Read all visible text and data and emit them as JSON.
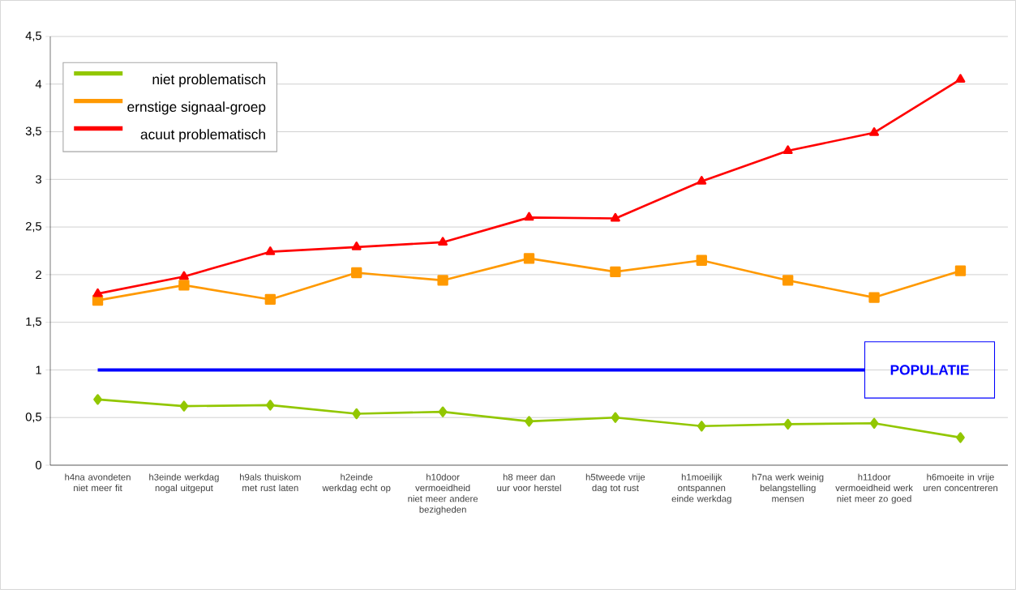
{
  "chart_data": {
    "type": "line",
    "categories": [
      "h4na avondeten niet meer fit",
      "h3einde werkdag nogal uitgeput",
      "h9als thuiskom met rust laten",
      "h2einde werkdag echt op",
      "h10door vermoeidheid niet meer andere bezigheden",
      "h8 meer dan uur voor herstel",
      "h5tweede vrije dag tot rust",
      "h1moeilijk ontspannen einde werkdag",
      "h7na werk weinig belangstelling mensen",
      "h11door vermoeidheid werk niet meer zo goed",
      "h6moeite in vrije uren concentreren"
    ],
    "series": [
      {
        "name": "niet problematisch",
        "color": "#92c700",
        "marker": "diamond",
        "values": [
          0.69,
          0.62,
          0.63,
          0.54,
          0.56,
          0.46,
          0.5,
          0.41,
          0.43,
          0.44,
          0.29
        ]
      },
      {
        "name": "ernstige signaal-groep",
        "color": "#ff9900",
        "marker": "square",
        "values": [
          1.73,
          1.89,
          1.74,
          2.02,
          1.94,
          2.17,
          2.03,
          2.15,
          1.94,
          1.76,
          2.04
        ]
      },
      {
        "name": "acuut problematisch",
        "color": "#ff0000",
        "marker": "triangle",
        "values": [
          1.8,
          1.98,
          2.24,
          2.29,
          2.34,
          2.6,
          2.59,
          2.98,
          3.3,
          3.49,
          4.05
        ]
      }
    ],
    "ylim": [
      0,
      4.5
    ],
    "yticks": [
      0,
      {
        "value": 0.5,
        "label": "0,5"
      },
      1,
      {
        "value": 1.5,
        "label": "1,5"
      },
      2,
      {
        "value": 2.5,
        "label": "2,5"
      },
      3,
      {
        "value": 3.5,
        "label": "3,5"
      },
      4,
      {
        "value": 4.5,
        "label": "4,5"
      }
    ],
    "ref_lines": [
      {
        "axis": "y",
        "value": 1,
        "label": "POPULATIE",
        "color": "#0000ff"
      }
    ],
    "grid": "y",
    "legend": "top left",
    "line_style": "solid"
  }
}
